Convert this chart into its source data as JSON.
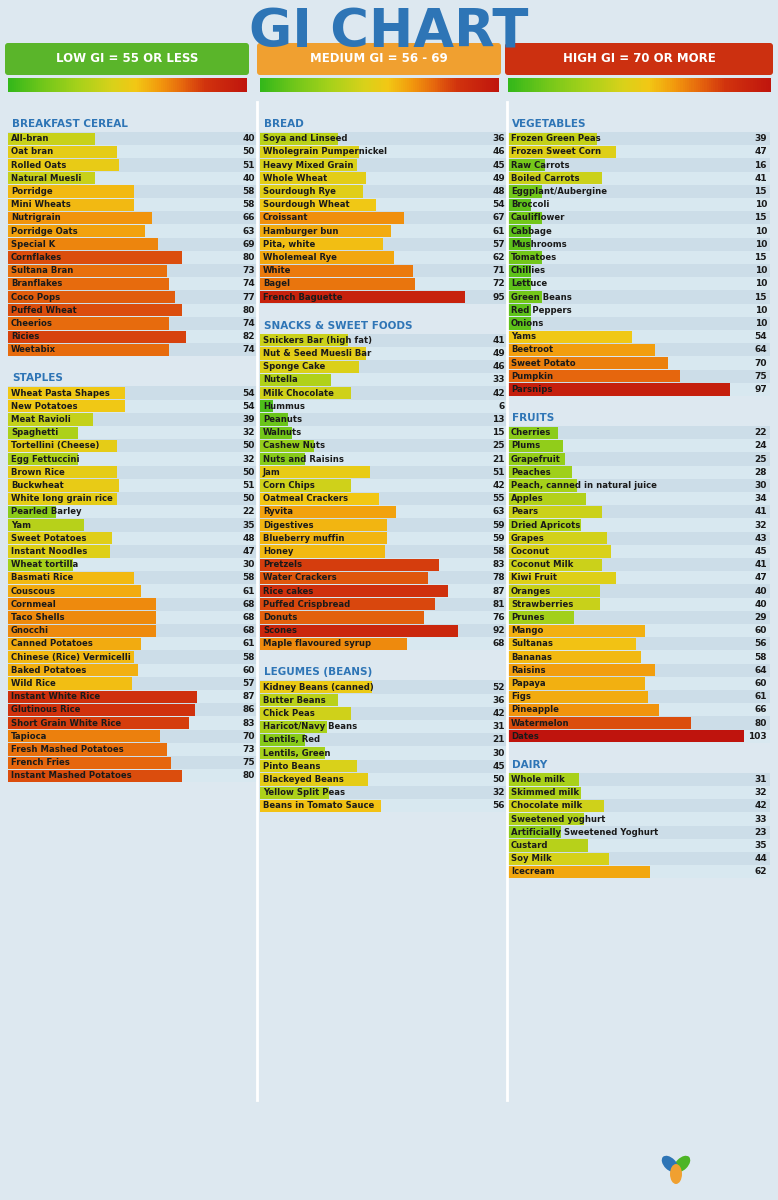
{
  "title": "GI CHART",
  "title_color": "#2E75B6",
  "bg_color": "#dde8f0",
  "low_label": "LOW GI = 55 OR LESS",
  "med_label": "MEDIUM GI = 56 - 69",
  "high_label": "HIGH GI = 70 OR MORE",
  "low_color": "#5ab52a",
  "med_color": "#f0a030",
  "high_color": "#cc3010",
  "col1": {
    "sections": [
      {
        "title": "BREAKFAST CEREAL",
        "title_color": "#2E75B6",
        "items": [
          [
            "All-bran",
            40
          ],
          [
            "Oat bran",
            50
          ],
          [
            "Rolled Oats",
            51
          ],
          [
            "Natural Muesli",
            40
          ],
          [
            "Porridge",
            58
          ],
          [
            "Mini Wheats",
            58
          ],
          [
            "Nutrigrain",
            66
          ],
          [
            "Porridge Oats",
            63
          ],
          [
            "Special K",
            69
          ],
          [
            "Cornflakes",
            80
          ],
          [
            "Sultana Bran",
            73
          ],
          [
            "Branflakes",
            74
          ],
          [
            "Coco Pops",
            77
          ],
          [
            "Puffed Wheat",
            80
          ],
          [
            "Cheerios",
            74
          ],
          [
            "Ricies",
            82
          ],
          [
            "Weetabix",
            74
          ]
        ]
      },
      {
        "title": "STAPLES",
        "title_color": "#2E75B6",
        "items": [
          [
            "Wheat Pasta Shapes",
            54
          ],
          [
            "New Potatoes",
            54
          ],
          [
            "Meat Ravioli",
            39
          ],
          [
            "Spaghetti",
            32
          ],
          [
            "Tortellini (Cheese)",
            50
          ],
          [
            "Egg Fettuccini",
            32
          ],
          [
            "Brown Rice",
            50
          ],
          [
            "Buckwheat",
            51
          ],
          [
            "White long grain rice",
            50
          ],
          [
            "Pearled Barley",
            22
          ],
          [
            "Yam",
            35
          ],
          [
            "Sweet Potatoes",
            48
          ],
          [
            "Instant Noodles",
            47
          ],
          [
            "Wheat tortilla",
            30
          ],
          [
            "Basmati Rice",
            58
          ],
          [
            "Couscous",
            61
          ],
          [
            "Cornmeal",
            68
          ],
          [
            "Taco Shells",
            68
          ],
          [
            "Gnocchi",
            68
          ],
          [
            "Canned Potatoes",
            61
          ],
          [
            "Chinese (Rice) Vermicelli",
            58
          ],
          [
            "Baked Potatoes",
            60
          ],
          [
            "Wild Rice",
            57
          ],
          [
            "Instant White Rice",
            87
          ],
          [
            "Glutinous Rice",
            86
          ],
          [
            "Short Grain White Rice",
            83
          ],
          [
            "Tapioca",
            70
          ],
          [
            "Fresh Mashed Potatoes",
            73
          ],
          [
            "French Fries",
            75
          ],
          [
            "Instant Mashed Potatoes",
            80
          ]
        ]
      }
    ]
  },
  "col2": {
    "sections": [
      {
        "title": "BREAD",
        "title_color": "#2E75B6",
        "items": [
          [
            "Soya and Linseed",
            36
          ],
          [
            "Wholegrain Pumpernickel",
            46
          ],
          [
            "Heavy Mixed Grain",
            45
          ],
          [
            "Whole Wheat",
            49
          ],
          [
            "Sourdough Rye",
            48
          ],
          [
            "Sourdough Wheat",
            54
          ],
          [
            "Croissant",
            67
          ],
          [
            "Hamburger bun",
            61
          ],
          [
            "Pita, white",
            57
          ],
          [
            "Wholemeal Rye",
            62
          ],
          [
            "White",
            71
          ],
          [
            "Bagel",
            72
          ],
          [
            "French Baguette",
            95
          ]
        ]
      },
      {
        "title": "SNACKS & SWEET FOODS",
        "title_color": "#2E75B6",
        "items": [
          [
            "Snickers Bar (high fat)",
            41
          ],
          [
            "Nut & Seed Muesli Bar",
            49
          ],
          [
            "Sponge Cake",
            46
          ],
          [
            "Nutella",
            33
          ],
          [
            "Milk Chocolate",
            42
          ],
          [
            "Hummus",
            6
          ],
          [
            "Peanuts",
            13
          ],
          [
            "Walnuts",
            15
          ],
          [
            "Cashew Nuts",
            25
          ],
          [
            "Nuts and Raisins",
            21
          ],
          [
            "Jam",
            51
          ],
          [
            "Corn Chips",
            42
          ],
          [
            "Oatmeal Crackers",
            55
          ],
          [
            "Ryvita",
            63
          ],
          [
            "Digestives",
            59
          ],
          [
            "Blueberry muffin",
            59
          ],
          [
            "Honey",
            58
          ],
          [
            "Pretzels",
            83
          ],
          [
            "Water Crackers",
            78
          ],
          [
            "Rice cakes",
            87
          ],
          [
            "Puffed Crispbread",
            81
          ],
          [
            "Donuts",
            76
          ],
          [
            "Scones",
            92
          ],
          [
            "Maple flavoured syrup",
            68
          ]
        ]
      },
      {
        "title": "LEGUMES (BEANS)",
        "title_color": "#2E75B6",
        "items": [
          [
            "Kidney Beans (canned)",
            52
          ],
          [
            "Butter Beans",
            36
          ],
          [
            "Chick Peas",
            42
          ],
          [
            "Haricot/Navy Beans",
            31
          ],
          [
            "Lentils, Red",
            21
          ],
          [
            "Lentils, Green",
            30
          ],
          [
            "Pinto Beans",
            45
          ],
          [
            "Blackeyed Beans",
            50
          ],
          [
            "Yellow Split Peas",
            32
          ],
          [
            "Beans in Tomato Sauce",
            56
          ]
        ]
      }
    ]
  },
  "col3": {
    "sections": [
      {
        "title": "VEGETABLES",
        "title_color": "#2E75B6",
        "items": [
          [
            "Frozen Green Peas",
            39
          ],
          [
            "Frozen Sweet Corn",
            47
          ],
          [
            "Raw Carrots",
            16
          ],
          [
            "Boiled Carrots",
            41
          ],
          [
            "Eggplant/Aubergine",
            15
          ],
          [
            "Broccoli",
            10
          ],
          [
            "Cauliflower",
            15
          ],
          [
            "Cabbage",
            10
          ],
          [
            "Mushrooms",
            10
          ],
          [
            "Tomatoes",
            15
          ],
          [
            "Chillies",
            10
          ],
          [
            "Lettuce",
            10
          ],
          [
            "Green Beans",
            15
          ],
          [
            "Red Peppers",
            10
          ],
          [
            "Onions",
            10
          ],
          [
            "Yams",
            54
          ],
          [
            "Beetroot",
            64
          ],
          [
            "Sweet Potato",
            70
          ],
          [
            "Pumpkin",
            75
          ],
          [
            "Parsnips",
            97
          ]
        ]
      },
      {
        "title": "FRUITS",
        "title_color": "#2E75B6",
        "items": [
          [
            "Cherries",
            22
          ],
          [
            "Plums",
            24
          ],
          [
            "Grapefruit",
            25
          ],
          [
            "Peaches",
            28
          ],
          [
            "Peach, canned in natural juice",
            30
          ],
          [
            "Apples",
            34
          ],
          [
            "Pears",
            41
          ],
          [
            "Dried Apricots",
            32
          ],
          [
            "Grapes",
            43
          ],
          [
            "Coconut",
            45
          ],
          [
            "Coconut Milk",
            41
          ],
          [
            "Kiwi Fruit",
            47
          ],
          [
            "Oranges",
            40
          ],
          [
            "Strawberries",
            40
          ],
          [
            "Prunes",
            29
          ],
          [
            "Mango",
            60
          ],
          [
            "Sultanas",
            56
          ],
          [
            "Bananas",
            58
          ],
          [
            "Raisins",
            64
          ],
          [
            "Papaya",
            60
          ],
          [
            "Figs",
            61
          ],
          [
            "Pineapple",
            66
          ],
          [
            "Watermelon",
            80
          ],
          [
            "Dates",
            103
          ]
        ]
      },
      {
        "title": "DAIRY",
        "title_color": "#2E75B6",
        "items": [
          [
            "Whole milk",
            31
          ],
          [
            "Skimmed milk",
            32
          ],
          [
            "Chocolate milk",
            42
          ],
          [
            "Sweetened yoghurt",
            33
          ],
          [
            "Artificially Sweetened Yoghurt",
            23
          ],
          [
            "Custard",
            35
          ],
          [
            "Soy Milk",
            44
          ],
          [
            "Icecream",
            62
          ]
        ]
      }
    ]
  }
}
